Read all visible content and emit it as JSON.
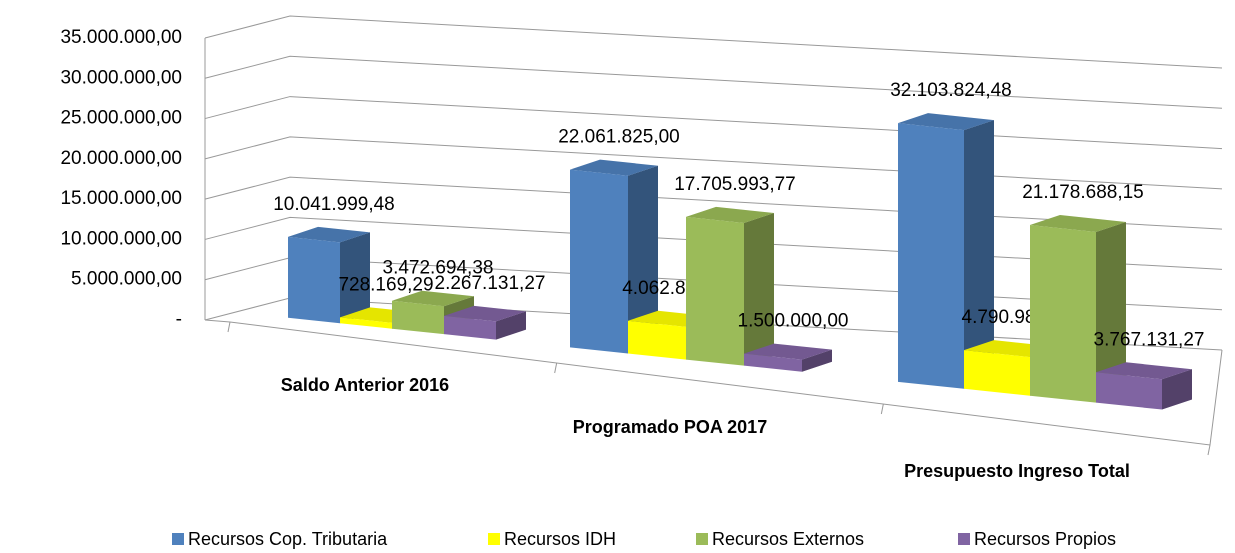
{
  "chart_data": {
    "type": "bar3d",
    "categories": [
      "Saldo Anterior 2016",
      "Programado POA 2017",
      "Presupuesto Ingreso Total"
    ],
    "series": [
      {
        "name": "Recursos Cop. Tributaria",
        "color": "#4f81bd",
        "values": [
          10041999.48,
          22061825.0,
          32103824.48
        ],
        "value_labels": [
          "10.041.999,48",
          "22.061.825,00",
          "32.103.824,48"
        ]
      },
      {
        "name": "Recursos IDH",
        "color": "#ffff00",
        "values": [
          728169.29,
          4062811.0,
          4790980.29
        ],
        "value_labels": [
          "728.169,29",
          "4.062.811,00",
          "4.790.980,29"
        ]
      },
      {
        "name": "Recursos Externos",
        "color": "#9bbb59",
        "values": [
          3472694.38,
          17705993.77,
          21178688.15
        ],
        "value_labels": [
          "3.472.694,38",
          "17.705.993,77",
          "21.178.688,15"
        ]
      },
      {
        "name": "Recursos Propios",
        "color": "#8064a2",
        "values": [
          2267131.27,
          1500000.0,
          3767131.27
        ],
        "value_labels": [
          "2.267.131,27",
          "1.500.000,00",
          "3.767.131,27"
        ]
      }
    ],
    "ylim": [
      0,
      35000000
    ],
    "yticks": [
      {
        "value": 0,
        "label": "-"
      },
      {
        "value": 5000000,
        "label": "5.000.000,00"
      },
      {
        "value": 10000000,
        "label": "10.000.000,00"
      },
      {
        "value": 15000000,
        "label": "15.000.000,00"
      },
      {
        "value": 20000000,
        "label": "20.000.000,00"
      },
      {
        "value": 25000000,
        "label": "25.000.000,00"
      },
      {
        "value": 30000000,
        "label": "30.000.000,00"
      },
      {
        "value": 35000000,
        "label": "35.000.000,00"
      }
    ],
    "grid": true,
    "legend": "bottom"
  }
}
